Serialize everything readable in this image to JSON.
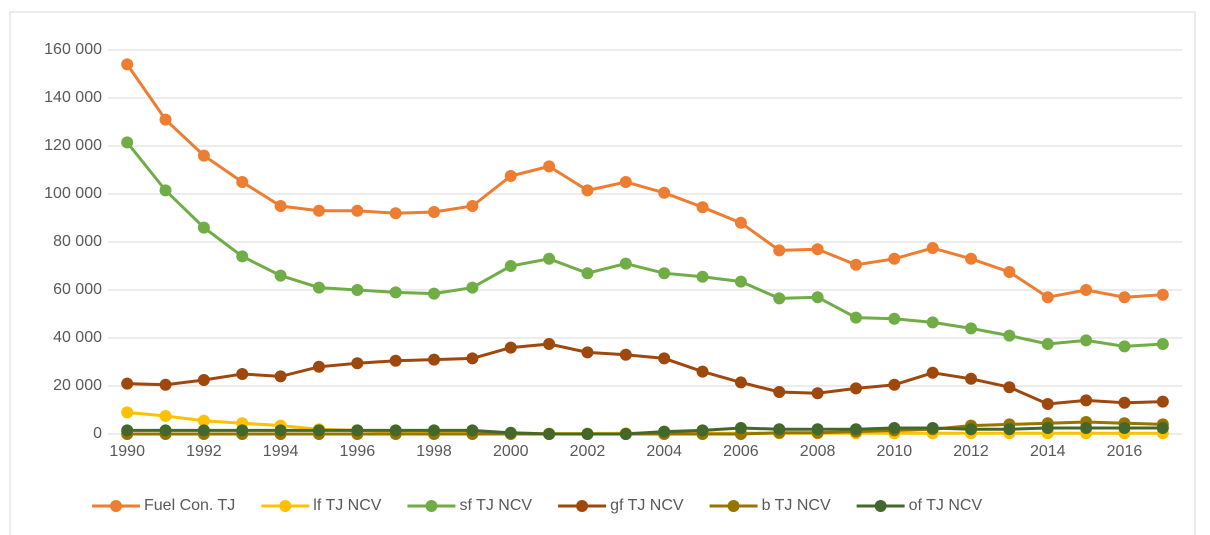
{
  "chart_data": {
    "type": "line",
    "categories": [
      "1990",
      null,
      "1992",
      null,
      "1994",
      null,
      "1996",
      null,
      "1998",
      null,
      "2000",
      null,
      "2002",
      null,
      "2004",
      null,
      "2006",
      null,
      "2008",
      null,
      "2010",
      null,
      "2012",
      null,
      "2014",
      null,
      "2016",
      null
    ],
    "series": [
      {
        "name": "Fuel Con. TJ",
        "color": "#ed7d31",
        "values": [
          154000,
          131000,
          116000,
          105000,
          95000,
          93000,
          93000,
          92000,
          92500,
          95000,
          107500,
          111500,
          101500,
          105000,
          100500,
          94500,
          88000,
          76500,
          77000,
          70500,
          73000,
          77500,
          73000,
          67500,
          57000,
          60000,
          57000,
          58000
        ]
      },
      {
        "name": "lf TJ NCV",
        "color": "#ffc000",
        "values": [
          9000,
          7500,
          5500,
          4500,
          3500,
          2000,
          1500,
          1000,
          500,
          500,
          300,
          200,
          200,
          300,
          300,
          300,
          300,
          300,
          300,
          300,
          300,
          300,
          300,
          300,
          300,
          300,
          300,
          300
        ]
      },
      {
        "name": "sf TJ NCV",
        "color": "#70ad47",
        "values": [
          121500,
          101500,
          86000,
          74000,
          66000,
          61000,
          60000,
          59000,
          58500,
          61000,
          70000,
          73000,
          67000,
          71000,
          67000,
          65500,
          63500,
          56500,
          57000,
          48500,
          48000,
          46500,
          44000,
          41000,
          37500,
          39000,
          36500,
          37500
        ]
      },
      {
        "name": "gf TJ NCV",
        "color": "#9e480e",
        "values": [
          21000,
          20500,
          22500,
          25000,
          24000,
          28000,
          29500,
          30500,
          31000,
          31500,
          36000,
          37500,
          34000,
          33000,
          31500,
          26000,
          21500,
          17500,
          17000,
          19000,
          20500,
          25500,
          23000,
          19500,
          12500,
          14000,
          13000,
          13500
        ]
      },
      {
        "name": "b TJ NCV",
        "color": "#997300",
        "values": [
          0,
          0,
          0,
          0,
          0,
          0,
          0,
          0,
          0,
          0,
          0,
          0,
          0,
          0,
          0,
          0,
          0,
          500,
          500,
          1000,
          1500,
          2000,
          3500,
          4000,
          4500,
          5000,
          4500,
          4000
        ]
      },
      {
        "name": "of TJ NCV",
        "color": "#43682b",
        "values": [
          1500,
          1500,
          1500,
          1500,
          1500,
          1500,
          1500,
          1500,
          1500,
          1500,
          500,
          0,
          0,
          0,
          1000,
          1500,
          2500,
          2000,
          2000,
          2000,
          2500,
          2500,
          2000,
          2000,
          2500,
          2500,
          2500,
          2500
        ]
      }
    ],
    "ylim": [
      0,
      160000
    ],
    "yticks": [
      0,
      {
        "value": 20000,
        "label": "20 000"
      },
      {
        "value": 40000,
        "label": "40 000"
      },
      {
        "value": 60000,
        "label": "60 000"
      },
      {
        "value": 80000,
        "label": "80 000"
      },
      {
        "value": 100000,
        "label": "100 000"
      },
      {
        "value": 120000,
        "label": "120 000"
      },
      {
        "value": 140000,
        "label": "140 000"
      },
      {
        "value": 160000,
        "label": "160 000"
      }
    ],
    "grid": true,
    "legend": "bottom"
  }
}
